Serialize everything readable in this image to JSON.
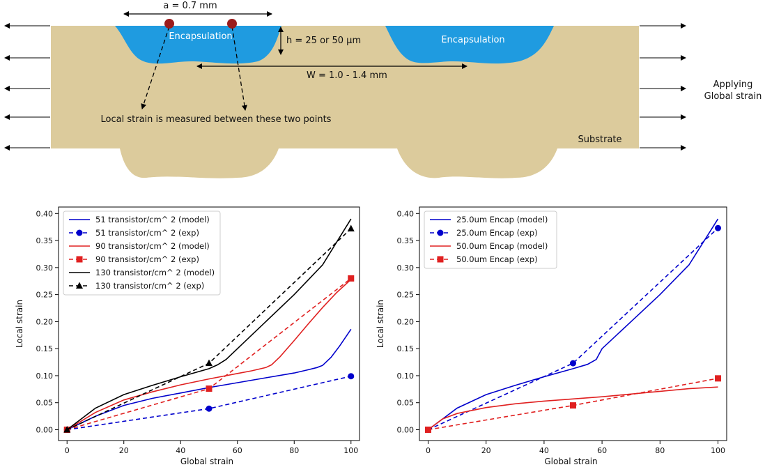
{
  "diagram": {
    "dim_a": "a = 0.7 mm",
    "dim_h": "h = 25 or 50 µm",
    "dim_w": "W = 1.0 - 1.4 mm",
    "encapsulation_left": "Encapsulation",
    "encapsulation_right": "Encapsulation",
    "local_strain_note": "Local strain is measured between these two points",
    "substrate_label": "Substrate",
    "applying_line1": "Applying",
    "applying_line2": "Global strain",
    "colors": {
      "substrate": "#dccb9c",
      "encapsulation": "#1f9be0",
      "marker": "#9b1c1c"
    }
  },
  "chart_data": [
    {
      "type": "line",
      "title": "",
      "xlabel": "Global strain",
      "ylabel": "Local strain",
      "xlim": [
        -3,
        103
      ],
      "ylim": [
        -0.02,
        0.412
      ],
      "xticks": [
        0,
        20,
        40,
        60,
        80,
        100
      ],
      "yticks": [
        0.0,
        0.05,
        0.1,
        0.15,
        0.2,
        0.25,
        0.3,
        0.35,
        0.4
      ],
      "legend_position": "top-left",
      "series": [
        {
          "name": "51 transistor/cm^ 2 (model)",
          "style": "solid",
          "color": "#0000cc",
          "marker": "none",
          "x": [
            0,
            10,
            20,
            30,
            40,
            50,
            60,
            70,
            80,
            85,
            88,
            90,
            93,
            96,
            100
          ],
          "y": [
            0,
            0.025,
            0.045,
            0.058,
            0.068,
            0.078,
            0.087,
            0.096,
            0.105,
            0.111,
            0.115,
            0.119,
            0.134,
            0.155,
            0.186
          ]
        },
        {
          "name": "51 transistor/cm^ 2 (exp)",
          "style": "dashed",
          "color": "#0000cc",
          "marker": "circle",
          "x": [
            0,
            50,
            100
          ],
          "y": [
            0,
            0.039,
            0.099
          ]
        },
        {
          "name": "90 transistor/cm^ 2 (model)",
          "style": "solid",
          "color": "#e02020",
          "marker": "none",
          "x": [
            0,
            10,
            20,
            30,
            40,
            50,
            60,
            65,
            70,
            72,
            75,
            80,
            85,
            90,
            95,
            100
          ],
          "y": [
            0,
            0.032,
            0.055,
            0.07,
            0.083,
            0.094,
            0.104,
            0.109,
            0.115,
            0.12,
            0.135,
            0.165,
            0.196,
            0.226,
            0.254,
            0.278
          ]
        },
        {
          "name": "90 transistor/cm^ 2 (exp)",
          "style": "dashed",
          "color": "#e02020",
          "marker": "square",
          "x": [
            0,
            50,
            100
          ],
          "y": [
            0,
            0.076,
            0.28
          ]
        },
        {
          "name": "130 transistor/cm^ 2 (model)",
          "style": "solid",
          "color": "#000000",
          "marker": "none",
          "x": [
            0,
            10,
            20,
            30,
            40,
            50,
            53,
            56,
            60,
            70,
            80,
            90,
            100
          ],
          "y": [
            0,
            0.04,
            0.065,
            0.082,
            0.098,
            0.113,
            0.12,
            0.13,
            0.15,
            0.2,
            0.25,
            0.305,
            0.39
          ]
        },
        {
          "name": "130 transistor/cm^ 2 (exp)",
          "style": "dashed",
          "color": "#000000",
          "marker": "triangle",
          "x": [
            0,
            50,
            100
          ],
          "y": [
            0,
            0.123,
            0.372
          ]
        }
      ]
    },
    {
      "type": "line",
      "title": "",
      "xlabel": "Global strain",
      "ylabel": "Local strain",
      "xlim": [
        -3,
        103
      ],
      "ylim": [
        -0.02,
        0.412
      ],
      "xticks": [
        0,
        20,
        40,
        60,
        80,
        100
      ],
      "yticks": [
        0.0,
        0.05,
        0.1,
        0.15,
        0.2,
        0.25,
        0.3,
        0.35,
        0.4
      ],
      "legend_position": "top-left",
      "series": [
        {
          "name": "25.0um Encap (model)",
          "style": "solid",
          "color": "#0000cc",
          "marker": "none",
          "x": [
            0,
            10,
            20,
            30,
            40,
            50,
            55,
            58,
            60,
            70,
            80,
            90,
            100
          ],
          "y": [
            0,
            0.04,
            0.065,
            0.082,
            0.098,
            0.113,
            0.121,
            0.13,
            0.15,
            0.2,
            0.25,
            0.305,
            0.39
          ]
        },
        {
          "name": "25.0um Encap (exp)",
          "style": "dashed",
          "color": "#0000cc",
          "marker": "circle",
          "x": [
            0,
            50,
            100
          ],
          "y": [
            0,
            0.123,
            0.373
          ]
        },
        {
          "name": "50.0um Encap (model)",
          "style": "solid",
          "color": "#e02020",
          "marker": "none",
          "x": [
            0,
            5,
            10,
            20,
            30,
            40,
            50,
            60,
            70,
            80,
            90,
            100
          ],
          "y": [
            0,
            0.02,
            0.03,
            0.041,
            0.048,
            0.053,
            0.057,
            0.061,
            0.066,
            0.071,
            0.076,
            0.079
          ]
        },
        {
          "name": "50.0um Encap (exp)",
          "style": "dashed",
          "color": "#e02020",
          "marker": "square",
          "x": [
            0,
            50,
            100
          ],
          "y": [
            0,
            0.045,
            0.095
          ]
        }
      ]
    }
  ]
}
